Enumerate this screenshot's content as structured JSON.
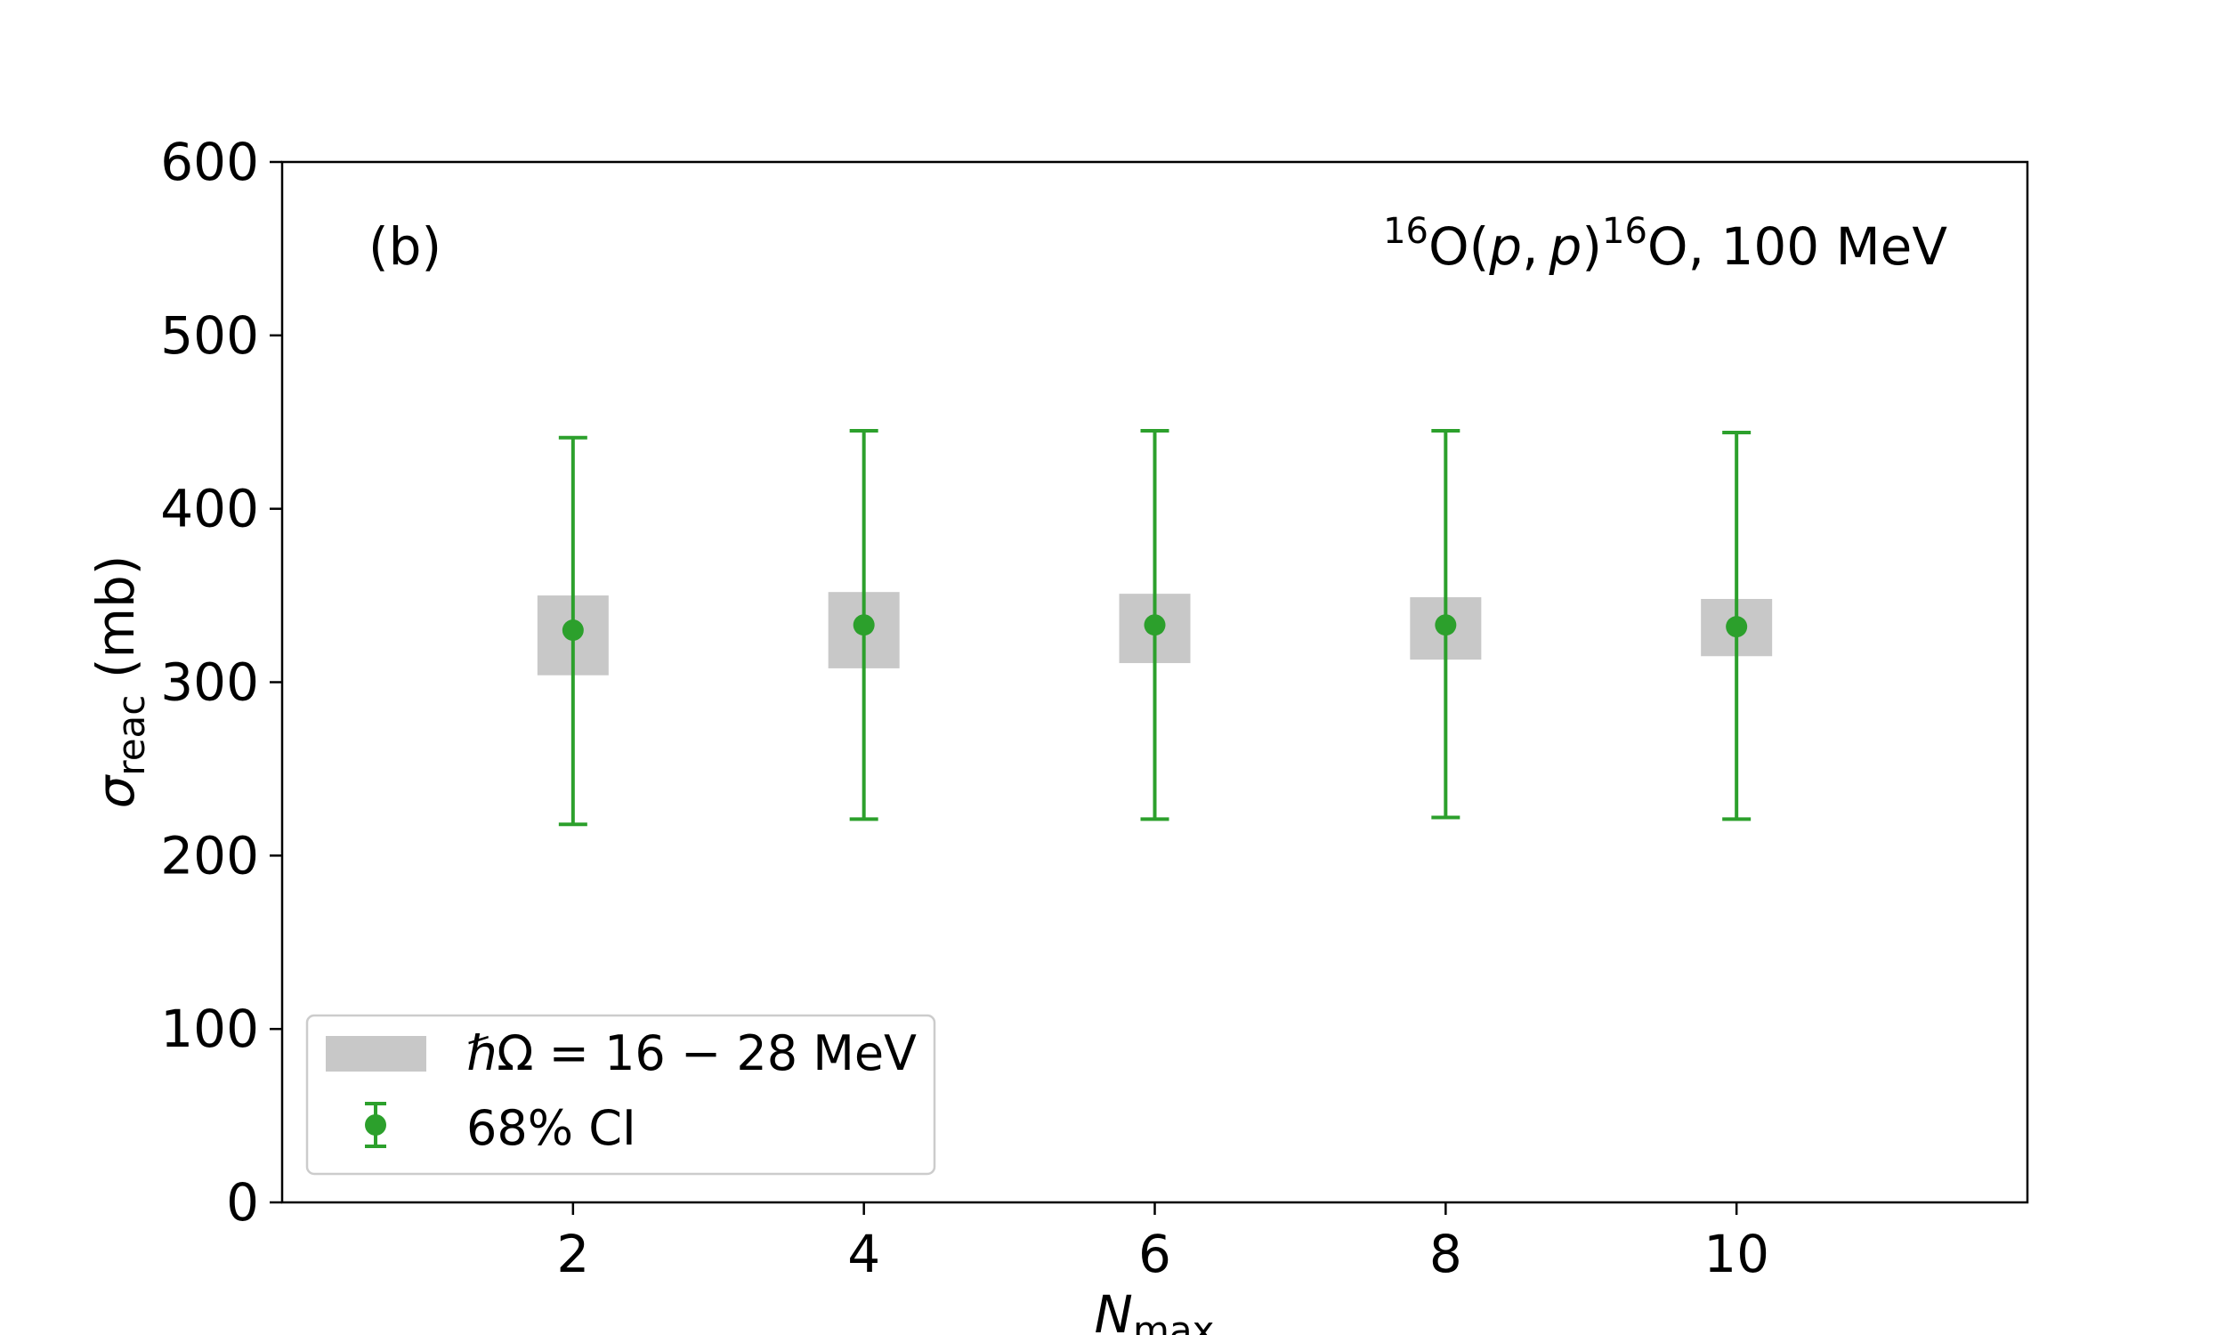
{
  "chart_data": {
    "type": "scatter",
    "panel_label": "(b)",
    "reaction": {
      "mass_number": "16",
      "element": "O",
      "open_paren": "(",
      "projectile": "p",
      "comma": ",",
      "ejectile": "p",
      "close_paren": ")",
      "mass_number_final": "16",
      "element_final": "O",
      "energy": ", 100 MeV"
    },
    "xlabel": {
      "symbol": "N",
      "subscript": "max"
    },
    "ylabel": {
      "symbol": "σ",
      "subscript": "reac",
      "unit": " (mb)"
    },
    "xlim": [
      0,
      12
    ],
    "ylim": [
      0,
      600
    ],
    "x_ticks": [
      2,
      4,
      6,
      8,
      10
    ],
    "y_ticks": [
      0,
      100,
      200,
      300,
      400,
      500,
      600
    ],
    "grid": false,
    "legend_position": "bottom-left",
    "colors": {
      "points": "#2ca02c",
      "band": "#c8c8c8"
    },
    "legend": {
      "band_label": "ℏΩ = 16 − 28 MeV",
      "points_label": "68% CI"
    },
    "points": [
      {
        "x": 2,
        "y": 330,
        "ci_low": 218,
        "ci_high": 441,
        "band_low": 304,
        "band_high": 350
      },
      {
        "x": 4,
        "y": 333,
        "ci_low": 221,
        "ci_high": 445,
        "band_low": 308,
        "band_high": 352
      },
      {
        "x": 6,
        "y": 333,
        "ci_low": 221,
        "ci_high": 445,
        "band_low": 311,
        "band_high": 351
      },
      {
        "x": 8,
        "y": 333,
        "ci_low": 222,
        "ci_high": 445,
        "band_low": 313,
        "band_high": 349
      },
      {
        "x": 10,
        "y": 332,
        "ci_low": 221,
        "ci_high": 444,
        "band_low": 315,
        "band_high": 348
      }
    ]
  }
}
